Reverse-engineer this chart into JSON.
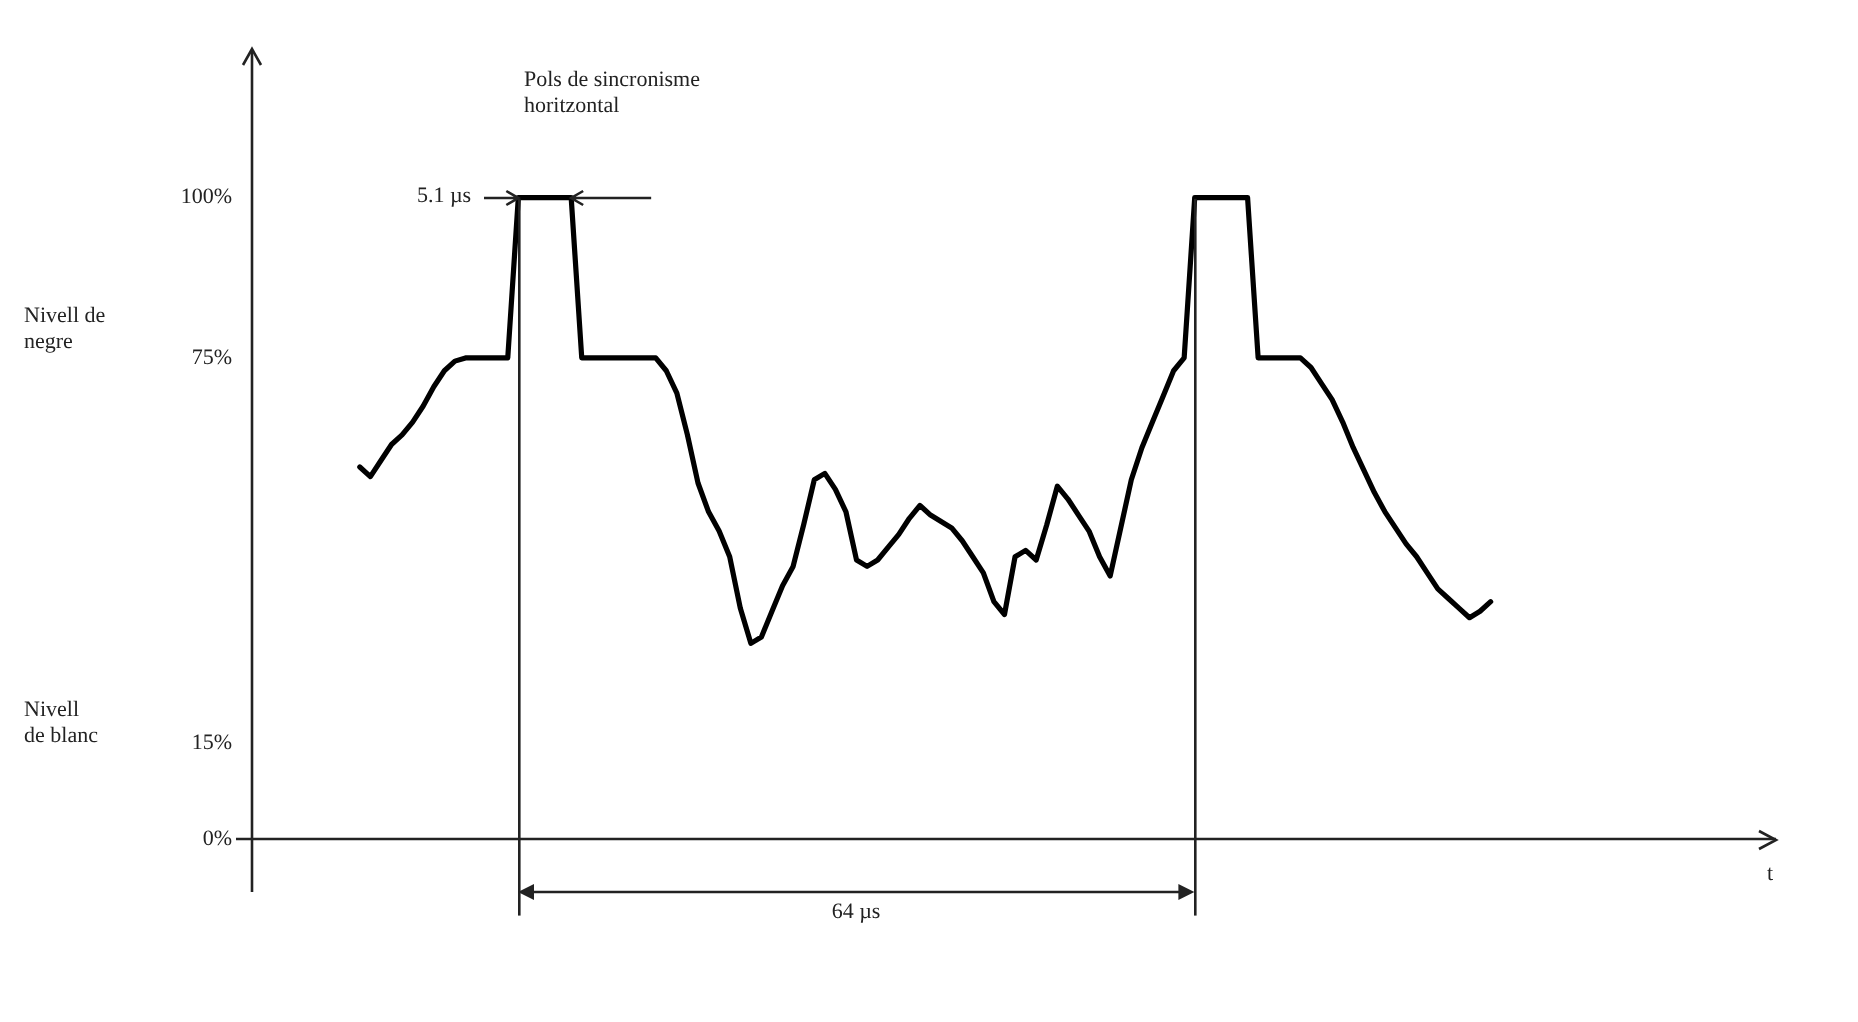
{
  "chart_data": {
    "type": "line",
    "categories": [
      null,
      null,
      null,
      null,
      null,
      null,
      null,
      null,
      null,
      null,
      null,
      null,
      null,
      null,
      null,
      null,
      null,
      null,
      null,
      null,
      null,
      null,
      null,
      null,
      null,
      null,
      null,
      null,
      null,
      null,
      null,
      null,
      null,
      null,
      null,
      null,
      null,
      null,
      null,
      null,
      null,
      null,
      null,
      null,
      null,
      null,
      null,
      null,
      null,
      null,
      null,
      null,
      null,
      null,
      null,
      null,
      null,
      null,
      null,
      null,
      null,
      null,
      null,
      null,
      null,
      null,
      null,
      null,
      null,
      null,
      null,
      null,
      null,
      null,
      null,
      null,
      null,
      null,
      null,
      null,
      null,
      null,
      null,
      null,
      null,
      null,
      null,
      null,
      null,
      null,
      null,
      null,
      null,
      null,
      null,
      null,
      null,
      null,
      null,
      null,
      null,
      null,
      null,
      null,
      null,
      null,
      null,
      null
    ],
    "series": [
      {
        "color": "#000000",
        "values": [
          58,
          56.5,
          59,
          61.5,
          63,
          65,
          67.5,
          70.5,
          73,
          74.5,
          75,
          75,
          75,
          75,
          75,
          100,
          100,
          100,
          100,
          100,
          100,
          75,
          75,
          75,
          75,
          75,
          75,
          75,
          75,
          73,
          69.5,
          63,
          55.5,
          51,
          48,
          44,
          36,
          30.5,
          31.5,
          35.5,
          39.5,
          42.5,
          49,
          56,
          57,
          54.5,
          51,
          43.5,
          42.5,
          43.5,
          45.5,
          47.5,
          50,
          52,
          50.5,
          49.5,
          48.5,
          46.5,
          44,
          41.5,
          37,
          35,
          44,
          45,
          43.5,
          49,
          55,
          53,
          50.5,
          48,
          44,
          41,
          48.5,
          56,
          61,
          65,
          69,
          73,
          75,
          100,
          100,
          100,
          100,
          100,
          100,
          75,
          75,
          75,
          75,
          75,
          73.5,
          71,
          68.5,
          65,
          61,
          57.5,
          54,
          51,
          48.5,
          46,
          44,
          41.5,
          39,
          37.5,
          36,
          34.5,
          35.5,
          37
        ]
      }
    ],
    "ylim": [
      -12,
      123
    ],
    "yticks": [
      {
        "value": 0,
        "label": "0%"
      },
      {
        "value": 15,
        "label": "15%"
      },
      {
        "value": 75,
        "label": "75%"
      },
      {
        "value": 100,
        "label": "100%"
      }
    ],
    "tick_labels": "y",
    "grid": false,
    "ref_lines": [
      {
        "axis": "y",
        "value": 0
      }
    ],
    "legend": false,
    "marker": "none",
    "line_style": "solid",
    "annotations": [
      "Nivell de\nnegre",
      "Nivell\nde blanc",
      "Pols de sincronisme\nhoritzontal",
      "5.1 µs",
      "64 µs",
      "t"
    ]
  }
}
